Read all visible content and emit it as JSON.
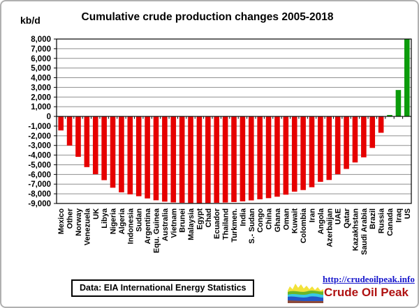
{
  "chart_data": {
    "type": "bar",
    "title": "Cumulative crude production changes 2005-2018",
    "ylabel": "kb/d",
    "xlabel": "",
    "ylim": [
      -9000,
      8000
    ],
    "ytick_step": 1000,
    "grid": "horizontal",
    "legend": "none",
    "bar_colors": {
      "negative": "#e60000",
      "positive": "#0b9b0b"
    },
    "categories": [
      "Mexico",
      "Other",
      "Norway",
      "Venezuela",
      "UK",
      "Libya",
      "Nigeria",
      "Algeria",
      "Indonesia",
      "Sudan",
      "Argentina",
      "Equ. Guinea",
      "Australia",
      "Vietnam",
      "Brunei",
      "Malaysia",
      "Egypt",
      "Chad",
      "Ecuador",
      "Thailand",
      "Turkmen.",
      "India",
      "S.- Sudan",
      "Congo",
      "China",
      "Ghana",
      "Oman",
      "Kuwait",
      "Colombia",
      "Iran",
      "Angola",
      "Azerbaijan",
      "UAE",
      "Qatar",
      "Kazakhstan",
      "Saudi Arabia",
      "Brazil",
      "Russia",
      "Canada",
      "Iraq",
      "US"
    ],
    "values": [
      -1450,
      -3010,
      -4180,
      -5240,
      -5970,
      -6590,
      -7370,
      -7850,
      -8060,
      -8250,
      -8480,
      -8670,
      -8810,
      -8890,
      -8930,
      -8950,
      -8960,
      -8950,
      -8930,
      -8900,
      -8850,
      -8780,
      -8680,
      -8570,
      -8450,
      -8300,
      -8090,
      -7780,
      -7610,
      -7320,
      -6760,
      -6570,
      -5970,
      -5430,
      -4760,
      -4230,
      -3260,
      -1690,
      150,
      2730,
      7970
    ]
  },
  "footer": {
    "source": "Data: EIA International Energy Statistics",
    "logo": {
      "url": "http://crudeoilpeak.info",
      "brand": "Crude Oil Peak"
    }
  }
}
